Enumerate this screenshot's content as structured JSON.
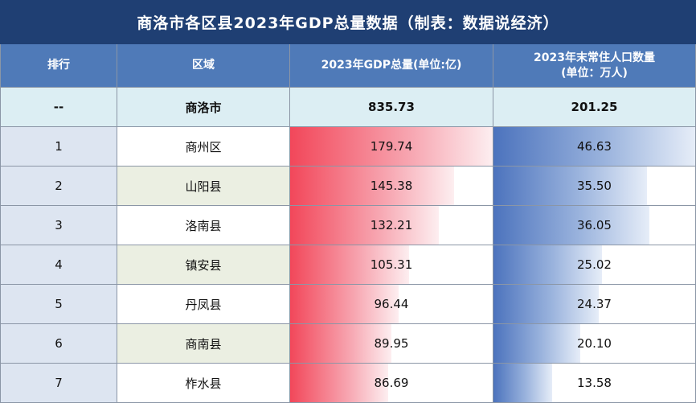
{
  "title": "商洛市各区县2023年GDP总量数据（制表：数据说经济）",
  "headers": {
    "rank": "排行",
    "region": "区域",
    "gdp": "2023年GDP总量(单位:亿)",
    "pop_line1": "2023年末常住人口数量",
    "pop_line2": "(单位：万人)"
  },
  "total": {
    "rank": "--",
    "region": "商洛市",
    "gdp": "835.73",
    "pop": "201.25"
  },
  "colors": {
    "title_bg": "#1f3f73",
    "header_bg": "#4f7ab8",
    "gdp_bar": "#f2475a",
    "pop_bar": "#4c73bd"
  },
  "chart_data": {
    "type": "table",
    "columns": [
      "排行",
      "区域",
      "2023年GDP总量(单位:亿)",
      "2023年末常住人口数量(单位：万人)"
    ],
    "rows": [
      {
        "rank": "1",
        "region": "商州区",
        "gdp": 179.74,
        "gdp_text": "179.74",
        "pop": 46.63,
        "pop_text": "46.63"
      },
      {
        "rank": "2",
        "region": "山阳县",
        "gdp": 145.38,
        "gdp_text": "145.38",
        "pop": 35.5,
        "pop_text": "35.50"
      },
      {
        "rank": "3",
        "region": "洛南县",
        "gdp": 132.21,
        "gdp_text": "132.21",
        "pop": 36.05,
        "pop_text": "36.05"
      },
      {
        "rank": "4",
        "region": "镇安县",
        "gdp": 105.31,
        "gdp_text": "105.31",
        "pop": 25.02,
        "pop_text": "25.02"
      },
      {
        "rank": "5",
        "region": "丹凤县",
        "gdp": 96.44,
        "gdp_text": "96.44",
        "pop": 24.37,
        "pop_text": "24.37"
      },
      {
        "rank": "6",
        "region": "商南县",
        "gdp": 89.95,
        "gdp_text": "89.95",
        "pop": 20.1,
        "pop_text": "20.10"
      },
      {
        "rank": "7",
        "region": "柞水县",
        "gdp": 86.69,
        "gdp_text": "86.69",
        "pop": 13.58,
        "pop_text": "13.58"
      }
    ]
  }
}
